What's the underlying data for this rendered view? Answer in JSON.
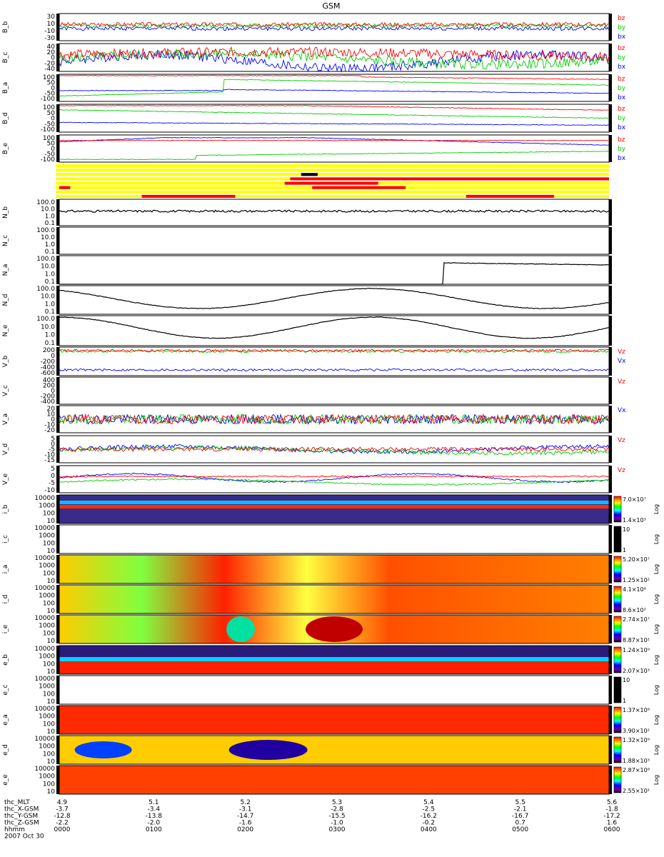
{
  "title": "GSM",
  "colors": {
    "bx": "#0000ff",
    "by": "#00cc00",
    "bz": "#ff0000",
    "bar_on": "#ff0000",
    "bar_off": "#ffff00",
    "black": "#000000"
  },
  "chart_data": {
    "type": "line",
    "title": "GSM",
    "x": {
      "label": "hhmm",
      "range": [
        "0000",
        "0600"
      ],
      "ticks": [
        "0000",
        "0100",
        "0200",
        "0300",
        "0400",
        "0500",
        "0600"
      ],
      "date": "2007 Oct 30"
    },
    "ephemeris": [
      {
        "label": "thc_MLT",
        "values": [
          "4.9",
          "5.1",
          "5.2",
          "5.3",
          "5.4",
          "5.5",
          "5.6"
        ]
      },
      {
        "label": "thc_X-GSM",
        "values": [
          "-3.7",
          "-3.4",
          "-3.1",
          "-2.8",
          "-2.5",
          "-2.1",
          "-1.8"
        ]
      },
      {
        "label": "thc_Y-GSM",
        "values": [
          "-12.8",
          "-13.8",
          "-14.7",
          "-15.5",
          "-16.2",
          "-16.7",
          "-17.2"
        ]
      },
      {
        "label": "thc_Z-GSM",
        "values": [
          "-2.2",
          "-2.0",
          "-1.6",
          "-1.0",
          "-0.2",
          "0.7",
          "1.6"
        ]
      },
      {
        "label": "hhmm",
        "values": [
          "0000",
          "0100",
          "0200",
          "0300",
          "0400",
          "0500",
          "0600"
        ]
      },
      {
        "label": "2007 Oct 30",
        "values": []
      }
    ],
    "panels": [
      {
        "id": "B_b",
        "ylabel": "B_b",
        "kind": "line3",
        "ticks": [
          "30",
          "10",
          "-10",
          "-30"
        ],
        "legend": [
          "bz",
          "by",
          "bx"
        ],
        "ylim": [
          -30,
          30
        ]
      },
      {
        "id": "B_c",
        "ylabel": "B_c",
        "kind": "line3",
        "ticks": [
          "40",
          "20",
          "0",
          "-20",
          "-40"
        ],
        "legend": [
          "bz",
          "by",
          "bx"
        ],
        "ylim": [
          -40,
          40
        ]
      },
      {
        "id": "B_a",
        "ylabel": "B_a",
        "kind": "line3",
        "ticks": [
          "100",
          "50",
          "0",
          "-50",
          "-100"
        ],
        "legend": [
          "bz",
          "by",
          "bx"
        ],
        "ylim": [
          -100,
          100
        ]
      },
      {
        "id": "B_d",
        "ylabel": "B_d",
        "kind": "line3",
        "ticks": [
          "100",
          "50",
          "0",
          "-50",
          "-100"
        ],
        "legend": [
          "bz",
          "by",
          "bx"
        ],
        "ylim": [
          -100,
          100
        ]
      },
      {
        "id": "B_e",
        "ylabel": "B_e",
        "kind": "line3",
        "ticks": [
          "100",
          "50",
          "0",
          "-50",
          "-100"
        ],
        "legend": [
          "bz",
          "by",
          "bx"
        ],
        "ylim": [
          -100,
          100
        ]
      },
      {
        "id": "bars",
        "kind": "bars"
      },
      {
        "id": "N_b",
        "ylabel": "N_b",
        "kind": "log",
        "ticks": [
          "100.0",
          "10.0",
          "1.0",
          "0.1"
        ]
      },
      {
        "id": "N_c",
        "ylabel": "N_c",
        "kind": "log",
        "ticks": [
          "100.0",
          "10.0",
          "1.0",
          "0.1"
        ]
      },
      {
        "id": "N_a",
        "ylabel": "N_a",
        "kind": "log",
        "ticks": [
          "100.0",
          "10.0",
          "1.0",
          "0.1"
        ]
      },
      {
        "id": "N_d",
        "ylabel": "N_d",
        "kind": "log",
        "ticks": [
          "100.0",
          "10.0",
          "1.0",
          "0.1"
        ]
      },
      {
        "id": "N_e",
        "ylabel": "N_e",
        "kind": "log",
        "ticks": [
          "100.0",
          "10.0",
          "1.0",
          "0.1"
        ]
      },
      {
        "id": "V_b",
        "ylabel": "V_b",
        "kind": "line3",
        "ticks": [
          "200",
          "0",
          "-200",
          "-400",
          "-600"
        ],
        "legend": [
          "Vz",
          "Vx"
        ],
        "ylim": [
          -600,
          200
        ]
      },
      {
        "id": "V_c",
        "ylabel": "V_c",
        "kind": "line3",
        "ticks": [
          "400",
          "200",
          "0",
          "-200",
          "-400"
        ],
        "legend": [
          "Vz"
        ],
        "ylim": [
          -400,
          400
        ]
      },
      {
        "id": "V_a",
        "ylabel": "V_a",
        "kind": "line3",
        "ticks": [
          "20",
          "10",
          "0",
          "-10",
          "-20"
        ],
        "legend": [
          "Vx"
        ],
        "ylim": [
          -20,
          20
        ]
      },
      {
        "id": "V_d",
        "ylabel": "V_d",
        "kind": "line3",
        "ticks": [
          "5",
          "0",
          "-5",
          "-10",
          "-15"
        ],
        "legend": [
          "Vz"
        ],
        "ylim": [
          -15,
          5
        ]
      },
      {
        "id": "V_e",
        "ylabel": "V_e",
        "kind": "line3",
        "ticks": [
          "5",
          "0",
          "-5",
          "-10"
        ],
        "legend": [
          "Vz"
        ],
        "ylim": [
          -10,
          5
        ]
      },
      {
        "id": "i_b",
        "ylabel": "i_b",
        "kind": "spec",
        "ticks": [
          "10000",
          "1000",
          "100",
          "10"
        ],
        "cbar": [
          "7.0×10⁷",
          "1.4×10³"
        ],
        "cbar_label": "Log"
      },
      {
        "id": "i_c",
        "ylabel": "i_c",
        "kind": "spec",
        "ticks": [
          "10000",
          "1000",
          "100",
          "10"
        ],
        "cbar": [
          "10",
          "1"
        ],
        "cbar_label": "Log"
      },
      {
        "id": "i_a",
        "ylabel": "i_a",
        "kind": "spec",
        "ticks": [
          "10000",
          "1000",
          "100",
          "10"
        ],
        "cbar": [
          "5.20×10⁷",
          "1.25×10²"
        ],
        "cbar_label": "Log"
      },
      {
        "id": "i_d",
        "ylabel": "i_d",
        "kind": "spec",
        "ticks": [
          "10000",
          "1000",
          "100",
          "10"
        ],
        "cbar": [
          "4.1×10⁶",
          "8.6×10²"
        ],
        "cbar_label": "Log"
      },
      {
        "id": "i_e",
        "ylabel": "i_e",
        "kind": "spec",
        "ticks": [
          "10000",
          "1000",
          "100",
          "10"
        ],
        "cbar": [
          "2.74×10⁷",
          "8.87×10²"
        ],
        "cbar_label": "Log"
      },
      {
        "id": "e_b",
        "ylabel": "e_b",
        "kind": "spec",
        "ticks": [
          "10000",
          "1000",
          "100",
          "10"
        ],
        "cbar": [
          "1.24×10⁹",
          "2.07×10³"
        ],
        "cbar_label": "Log"
      },
      {
        "id": "e_c",
        "ylabel": "e_c",
        "kind": "spec",
        "ticks": [
          "10000",
          "1000",
          "100",
          "10"
        ],
        "cbar": [
          "10",
          "1"
        ],
        "cbar_label": "Log"
      },
      {
        "id": "e_a",
        "ylabel": "e_a",
        "kind": "spec",
        "ticks": [
          "10000",
          "1000",
          "100",
          "10"
        ],
        "cbar": [
          "1.37×10⁸",
          "3.90×10²"
        ],
        "cbar_label": "Log"
      },
      {
        "id": "e_d",
        "ylabel": "e_d",
        "kind": "spec",
        "ticks": [
          "10000",
          "1000",
          "100",
          "10"
        ],
        "cbar": [
          "1.32×10⁹",
          "1.88×10³"
        ],
        "cbar_label": "Log"
      },
      {
        "id": "e_e",
        "ylabel": "e_e",
        "kind": "spec",
        "ticks": [
          "10000",
          "1000",
          "100",
          "10"
        ],
        "cbar": [
          "2.87×10⁸",
          "2.55×10²"
        ],
        "cbar_label": "Log"
      }
    ]
  }
}
